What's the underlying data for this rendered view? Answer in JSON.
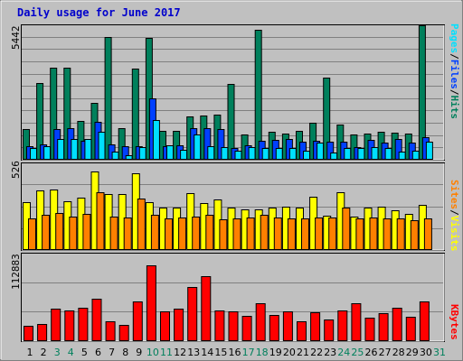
{
  "title": "Daily usage for June 2017",
  "colors": {
    "background": "#c0c0c0",
    "plot_bg": "#c0c0c0",
    "hits": "#00805c",
    "files": "#0040ff",
    "pages": "#00e0ff",
    "visits": "#ffff00",
    "sites": "#ff8000",
    "kbytes": "#ff0000",
    "weekday_label": "#000000",
    "weekend_label": "#00805c",
    "title": "#0000cc"
  },
  "legend": {
    "pages": "Pages",
    "files": "Files",
    "hits": "Hits",
    "visits": "Visits",
    "sites": "Sites",
    "kbytes": "KBytes",
    "sep": "/"
  },
  "chart_data": [
    {
      "type": "bar",
      "name": "hits-files-pages",
      "ymax_label": "5442",
      "ylim": [
        0,
        5442
      ],
      "categories": [
        "1",
        "2",
        "3",
        "4",
        "5",
        "6",
        "7",
        "8",
        "9",
        "10",
        "11",
        "12",
        "13",
        "14",
        "15",
        "16",
        "17",
        "18",
        "19",
        "20",
        "21",
        "22",
        "23",
        "24",
        "25",
        "26",
        "27",
        "28",
        "29",
        "30",
        "31"
      ],
      "weekend_days": [
        "3",
        "4",
        "10",
        "11",
        "17",
        "18",
        "24",
        "25",
        "31"
      ],
      "series": [
        {
          "name": "Hits",
          "values": [
            1270,
            3150,
            3820,
            3810,
            1600,
            2360,
            5080,
            1310,
            3750,
            5030,
            1180,
            1190,
            1800,
            1810,
            1860,
            3130,
            1040,
            5360,
            1160,
            1090,
            1180,
            1510,
            3390,
            1450,
            1040,
            1090,
            1140,
            1130,
            1080,
            5570,
            0
          ]
        },
        {
          "name": "Files",
          "values": [
            560,
            640,
            1260,
            1300,
            800,
            1550,
            630,
            570,
            570,
            2550,
            560,
            610,
            1290,
            1310,
            1260,
            500,
            580,
            800,
            820,
            870,
            760,
            790,
            760,
            760,
            520,
            810,
            720,
            850,
            710,
            920,
            0
          ]
        },
        {
          "name": "Pages",
          "values": [
            480,
            560,
            850,
            860,
            860,
            1170,
            340,
            190,
            520,
            1640,
            580,
            400,
            1040,
            560,
            530,
            370,
            520,
            490,
            500,
            480,
            380,
            690,
            280,
            500,
            490,
            510,
            500,
            350,
            380,
            730,
            0
          ]
        }
      ]
    },
    {
      "type": "bar",
      "name": "visits-sites",
      "ymax_label": "526",
      "ylim": [
        0,
        526
      ],
      "categories": [
        "1",
        "2",
        "3",
        "4",
        "5",
        "6",
        "7",
        "8",
        "9",
        "10",
        "11",
        "12",
        "13",
        "14",
        "15",
        "16",
        "17",
        "18",
        "19",
        "20",
        "21",
        "22",
        "23",
        "24",
        "25",
        "26",
        "27",
        "28",
        "29",
        "30",
        "31"
      ],
      "series": [
        {
          "name": "Visits",
          "values": [
            300,
            376,
            378,
            306,
            330,
            493,
            353,
            352,
            482,
            297,
            263,
            264,
            356,
            293,
            316,
            267,
            253,
            256,
            264,
            271,
            264,
            335,
            213,
            364,
            210,
            268,
            271,
            250,
            226,
            280,
            0
          ]
        },
        {
          "name": "Sites",
          "values": [
            197,
            223,
            232,
            211,
            228,
            362,
            208,
            205,
            322,
            221,
            200,
            201,
            210,
            222,
            193,
            200,
            201,
            222,
            203,
            198,
            197,
            205,
            204,
            266,
            196,
            206,
            197,
            197,
            188,
            200,
            0
          ]
        }
      ]
    },
    {
      "type": "bar",
      "name": "kbytes",
      "ymax_label": "112883",
      "ylim": [
        0,
        112883
      ],
      "categories": [
        "1",
        "2",
        "3",
        "4",
        "5",
        "6",
        "7",
        "8",
        "9",
        "10",
        "11",
        "12",
        "13",
        "14",
        "15",
        "16",
        "17",
        "18",
        "19",
        "20",
        "21",
        "22",
        "23",
        "24",
        "25",
        "26",
        "27",
        "28",
        "29",
        "30",
        "31"
      ],
      "series": [
        {
          "name": "KBytes",
          "values": [
            20000,
            23000,
            43000,
            41000,
            45000,
            57000,
            26000,
            22000,
            53000,
            101000,
            40000,
            43000,
            72000,
            87000,
            41000,
            40000,
            34000,
            51000,
            35000,
            40000,
            26000,
            38000,
            29000,
            41000,
            51000,
            31000,
            37000,
            45000,
            33000,
            53000,
            0
          ]
        }
      ]
    }
  ]
}
